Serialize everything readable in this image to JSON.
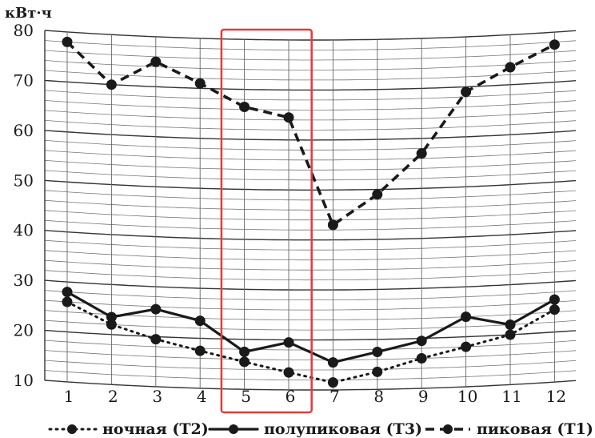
{
  "chart_data": {
    "type": "line",
    "unit_label": "кВт·ч",
    "x": [
      1,
      2,
      3,
      4,
      5,
      6,
      7,
      8,
      9,
      10,
      11,
      12
    ],
    "x_tick_labels": [
      "1",
      "2",
      "3",
      "4",
      "5",
      "6",
      "7",
      "8",
      "9",
      "10",
      "11",
      "12"
    ],
    "ylim": [
      10,
      80
    ],
    "y_tick_labels": [
      "10",
      "20",
      "30",
      "40",
      "50",
      "60",
      "70",
      "80"
    ],
    "grid": true,
    "highlight": {
      "from": 5,
      "to": 6,
      "color": "#e03c3c"
    },
    "series": [
      {
        "name": "ночная (Т2)",
        "style": "dotted",
        "values": [
          26,
          22,
          19.5,
          17.5,
          15.5,
          13.5,
          11.5,
          13.5,
          16,
          18,
          20,
          24.5
        ]
      },
      {
        "name": "полупиковая (Т3)",
        "style": "solid",
        "values": [
          28,
          23.5,
          25.5,
          23.5,
          17.5,
          19.5,
          15.5,
          17.5,
          19.5,
          24,
          22,
          26.5
        ]
      },
      {
        "name": "пиковая (Т1)",
        "style": "dashed",
        "values": [
          78,
          70,
          75,
          71,
          66.5,
          64.5,
          43,
          49,
          57,
          69,
          73.5,
          77.5
        ]
      }
    ],
    "legend_position": "bottom"
  }
}
